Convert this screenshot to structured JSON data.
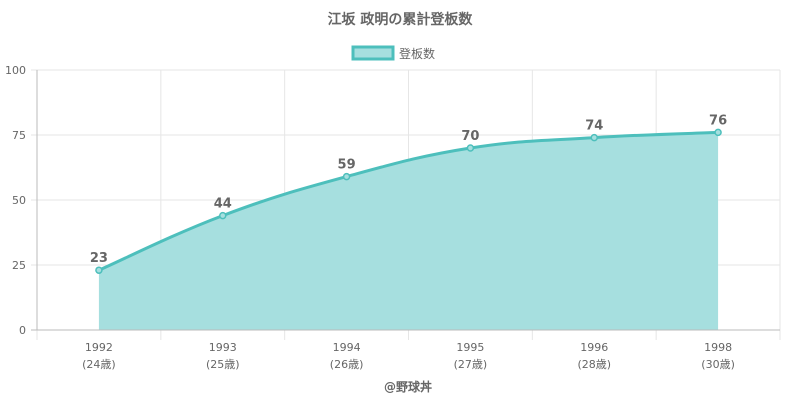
{
  "chart_data": {
    "type": "area",
    "title": "江坂 政明の累計登板数",
    "legend": {
      "label": "登板数",
      "position": "top"
    },
    "categories": [
      "1992",
      "1993",
      "1994",
      "1995",
      "1996",
      "1998"
    ],
    "sub_labels": [
      "(24歳)",
      "(25歳)",
      "(26歳)",
      "(27歳)",
      "(28歳)",
      "(30歳)"
    ],
    "series": [
      {
        "name": "登板数",
        "values": [
          23,
          44,
          59,
          70,
          74,
          76
        ]
      }
    ],
    "ylim": [
      0,
      100
    ],
    "yticks": [
      0,
      25,
      50,
      75,
      100
    ],
    "grid": true,
    "colors": {
      "line": "#4dbfbc",
      "fill": "#a6dfdf",
      "grid": "#e6e6e6",
      "axis": "#bbbbbb"
    }
  },
  "credit": "@野球丼"
}
